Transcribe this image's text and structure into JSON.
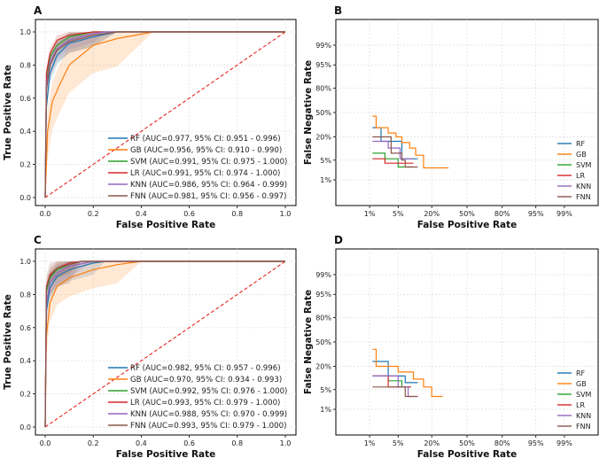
{
  "colors": {
    "RF": "#1f77b4",
    "GB": "#ff7f0e",
    "SVM": "#2ca02c",
    "LR": "#d62728",
    "KNN": "#9467bd",
    "FNN": "#8c564b",
    "diag": "#e8231a"
  },
  "chart_data": [
    {
      "panel": "A",
      "type": "line",
      "xlabel": "False Positive Rate",
      "ylabel": "True Positive Rate",
      "xlim": [
        0,
        1
      ],
      "ylim": [
        0,
        1
      ],
      "xticks": [
        "0.0",
        "0.2",
        "0.4",
        "0.6",
        "0.8",
        "1.0"
      ],
      "yticks": [
        "0.0",
        "0.2",
        "0.4",
        "0.6",
        "0.8",
        "1.0"
      ],
      "legend_position": "lower-right",
      "series": [
        {
          "name": "RF",
          "label": "RF (AUC=0.977, 95% CI: 0.951 - 0.996)",
          "x": [
            0,
            0.005,
            0.02,
            0.05,
            0.1,
            0.2,
            0.3,
            1
          ],
          "y": [
            0,
            0.55,
            0.75,
            0.86,
            0.93,
            0.97,
            1.0,
            1.0
          ],
          "band": 0.04
        },
        {
          "name": "GB",
          "label": "GB (AUC=0.956, 95% CI: 0.910 - 0.990)",
          "x": [
            0,
            0.01,
            0.03,
            0.06,
            0.1,
            0.2,
            0.3,
            0.45,
            1
          ],
          "y": [
            0,
            0.4,
            0.58,
            0.68,
            0.8,
            0.92,
            0.96,
            1.0,
            1.0
          ],
          "band": 0.12
        },
        {
          "name": "SVM",
          "label": "SVM (AUC=0.991, 95% CI: 0.975 - 1.000)",
          "x": [
            0,
            0.005,
            0.02,
            0.05,
            0.1,
            0.2,
            1
          ],
          "y": [
            0,
            0.7,
            0.85,
            0.92,
            0.97,
            1.0,
            1.0
          ],
          "band": 0.03
        },
        {
          "name": "LR",
          "label": "LR (AUC=0.991, 95% CI: 0.974 - 1.000)",
          "x": [
            0,
            0.005,
            0.02,
            0.05,
            0.1,
            0.2,
            1
          ],
          "y": [
            0,
            0.75,
            0.87,
            0.95,
            0.98,
            1.0,
            1.0
          ],
          "band": 0.03
        },
        {
          "name": "KNN",
          "label": "KNN (AUC=0.986, 95% CI: 0.964 - 0.999)",
          "x": [
            0,
            0.005,
            0.02,
            0.05,
            0.1,
            0.2,
            0.25,
            1
          ],
          "y": [
            0,
            0.68,
            0.82,
            0.9,
            0.95,
            0.99,
            1.0,
            1.0
          ],
          "band": 0.04
        },
        {
          "name": "FNN",
          "label": "FNN (AUC=0.981, 95% CI: 0.956 - 0.997)",
          "x": [
            0,
            0.005,
            0.02,
            0.05,
            0.1,
            0.2,
            0.3,
            1
          ],
          "y": [
            0,
            0.65,
            0.8,
            0.89,
            0.94,
            0.98,
            1.0,
            1.0
          ],
          "band": 0.05
        }
      ],
      "diagonal": {
        "x": [
          0,
          1
        ],
        "y": [
          0,
          1
        ]
      }
    },
    {
      "panel": "B",
      "type": "line",
      "xlabel": "False Positive Rate",
      "ylabel": "False Negative Rate",
      "xticks": [
        "1%",
        "5%",
        "20%",
        "50%",
        "80%",
        "95%",
        "99%"
      ],
      "yticks": [
        "1%",
        "5%",
        "20%",
        "50%",
        "80%",
        "95%",
        "99%"
      ],
      "legend_position": "lower-right",
      "series": [
        {
          "name": "RF",
          "x": [
            0.012,
            0.02,
            0.02,
            0.06,
            0.06,
            0.12
          ],
          "y": [
            0.3,
            0.3,
            0.16,
            0.16,
            0.055,
            0.055
          ]
        },
        {
          "name": "GB",
          "x": [
            0.012,
            0.015,
            0.015,
            0.03,
            0.03,
            0.045,
            0.045,
            0.06,
            0.06,
            0.085,
            0.085,
            0.11,
            0.11,
            0.15,
            0.15,
            0.33
          ],
          "y": [
            0.45,
            0.45,
            0.3,
            0.3,
            0.24,
            0.24,
            0.2,
            0.2,
            0.15,
            0.15,
            0.11,
            0.11,
            0.07,
            0.07,
            0.028,
            0.028
          ]
        },
        {
          "name": "SVM",
          "x": [
            0.012,
            0.025,
            0.025,
            0.05,
            0.05,
            0.1
          ],
          "y": [
            0.08,
            0.08,
            0.055,
            0.055,
            0.03,
            0.03
          ]
        },
        {
          "name": "LR",
          "x": [
            0.012,
            0.025,
            0.025,
            0.1
          ],
          "y": [
            0.055,
            0.055,
            0.04,
            0.04
          ]
        },
        {
          "name": "KNN",
          "x": [
            0.012,
            0.03,
            0.03,
            0.055,
            0.055,
            0.1
          ],
          "y": [
            0.16,
            0.16,
            0.11,
            0.11,
            0.055,
            0.055
          ]
        },
        {
          "name": "FNN",
          "x": [
            0.012,
            0.035,
            0.035,
            0.06,
            0.06,
            0.07,
            0.07,
            0.12
          ],
          "y": [
            0.2,
            0.2,
            0.08,
            0.08,
            0.05,
            0.05,
            0.03,
            0.03
          ]
        }
      ]
    },
    {
      "panel": "C",
      "type": "line",
      "xlabel": "False Positive Rate",
      "ylabel": "True Positive Rate",
      "xlim": [
        0,
        1
      ],
      "ylim": [
        0,
        1
      ],
      "xticks": [
        "0.0",
        "0.2",
        "0.4",
        "0.6",
        "0.8",
        "1.0"
      ],
      "yticks": [
        "0.0",
        "0.2",
        "0.4",
        "0.6",
        "0.8",
        "1.0"
      ],
      "legend_position": "lower-right",
      "series": [
        {
          "name": "RF",
          "label": "RF (AUC=0.982, 95% CI: 0.957 - 0.996)",
          "x": [
            0,
            0.005,
            0.02,
            0.05,
            0.1,
            0.2,
            0.25,
            1
          ],
          "y": [
            0,
            0.7,
            0.84,
            0.91,
            0.95,
            0.99,
            1.0,
            1.0
          ],
          "band": 0.05
        },
        {
          "name": "GB",
          "label": "GB (AUC=0.970, 95% CI: 0.934 - 0.993)",
          "x": [
            0,
            0.005,
            0.02,
            0.05,
            0.1,
            0.2,
            0.3,
            0.4,
            1
          ],
          "y": [
            0,
            0.55,
            0.75,
            0.85,
            0.9,
            0.95,
            0.98,
            1.0,
            1.0
          ],
          "band": 0.08
        },
        {
          "name": "SVM",
          "label": "SVM (AUC=0.992, 95% CI: 0.976 - 1.000)",
          "x": [
            0,
            0.005,
            0.02,
            0.05,
            0.1,
            0.15,
            1
          ],
          "y": [
            0,
            0.82,
            0.9,
            0.95,
            0.98,
            1.0,
            1.0
          ],
          "band": 0.04
        },
        {
          "name": "LR",
          "label": "LR (AUC=0.993, 95% CI: 0.979 - 1.000)",
          "x": [
            0,
            0.005,
            0.02,
            0.05,
            0.1,
            0.15,
            1
          ],
          "y": [
            0,
            0.85,
            0.92,
            0.96,
            0.99,
            1.0,
            1.0
          ],
          "band": 0.04
        },
        {
          "name": "KNN",
          "label": "KNN (AUC=0.988, 95% CI: 0.970 - 0.999)",
          "x": [
            0,
            0.005,
            0.02,
            0.05,
            0.1,
            0.2,
            1
          ],
          "y": [
            0,
            0.75,
            0.87,
            0.93,
            0.97,
            1.0,
            1.0
          ],
          "band": 0.05
        },
        {
          "name": "FNN",
          "label": "FNN (AUC=0.993, 95% CI: 0.979 - 1.000)",
          "x": [
            0,
            0.005,
            0.02,
            0.05,
            0.1,
            0.15,
            1
          ],
          "y": [
            0,
            0.84,
            0.91,
            0.96,
            0.98,
            1.0,
            1.0
          ],
          "band": 0.08
        }
      ],
      "diagonal": {
        "x": [
          0,
          1
        ],
        "y": [
          0,
          1
        ]
      }
    },
    {
      "panel": "D",
      "type": "line",
      "xlabel": "False Positive Rate",
      "ylabel": "False Negative Rate",
      "xticks": [
        "1%",
        "5%",
        "20%",
        "50%",
        "80%",
        "95%",
        "99%"
      ],
      "yticks": [
        "1%",
        "5%",
        "20%",
        "50%",
        "80%",
        "95%",
        "99%"
      ],
      "legend_position": "lower-right",
      "series": [
        {
          "name": "RF",
          "x": [
            0.012,
            0.03,
            0.03,
            0.07,
            0.07,
            0.12
          ],
          "y": [
            0.25,
            0.25,
            0.12,
            0.12,
            0.08,
            0.08
          ]
        },
        {
          "name": "GB",
          "x": [
            0.012,
            0.015,
            0.015,
            0.05,
            0.05,
            0.1,
            0.1,
            0.15,
            0.15,
            0.2,
            0.2,
            0.28
          ],
          "y": [
            0.4,
            0.4,
            0.2,
            0.2,
            0.15,
            0.15,
            0.1,
            0.1,
            0.06,
            0.06,
            0.03,
            0.03
          ]
        },
        {
          "name": "SVM",
          "x": [
            0.012,
            0.03,
            0.03,
            0.06,
            0.06,
            0.09
          ],
          "y": [
            0.12,
            0.12,
            0.09,
            0.09,
            0.06,
            0.06
          ]
        },
        {
          "name": "LR",
          "x": [
            0.012,
            0.03,
            0.03,
            0.09
          ],
          "y": [
            0.12,
            0.12,
            0.06,
            0.06
          ]
        },
        {
          "name": "KNN",
          "x": [
            0.012,
            0.05,
            0.05,
            0.08,
            0.08,
            0.12
          ],
          "y": [
            0.12,
            0.12,
            0.06,
            0.06,
            0.03,
            0.03
          ]
        },
        {
          "name": "FNN",
          "x": [
            0.012,
            0.07,
            0.07,
            0.12
          ],
          "y": [
            0.06,
            0.06,
            0.03,
            0.03
          ]
        }
      ]
    }
  ]
}
